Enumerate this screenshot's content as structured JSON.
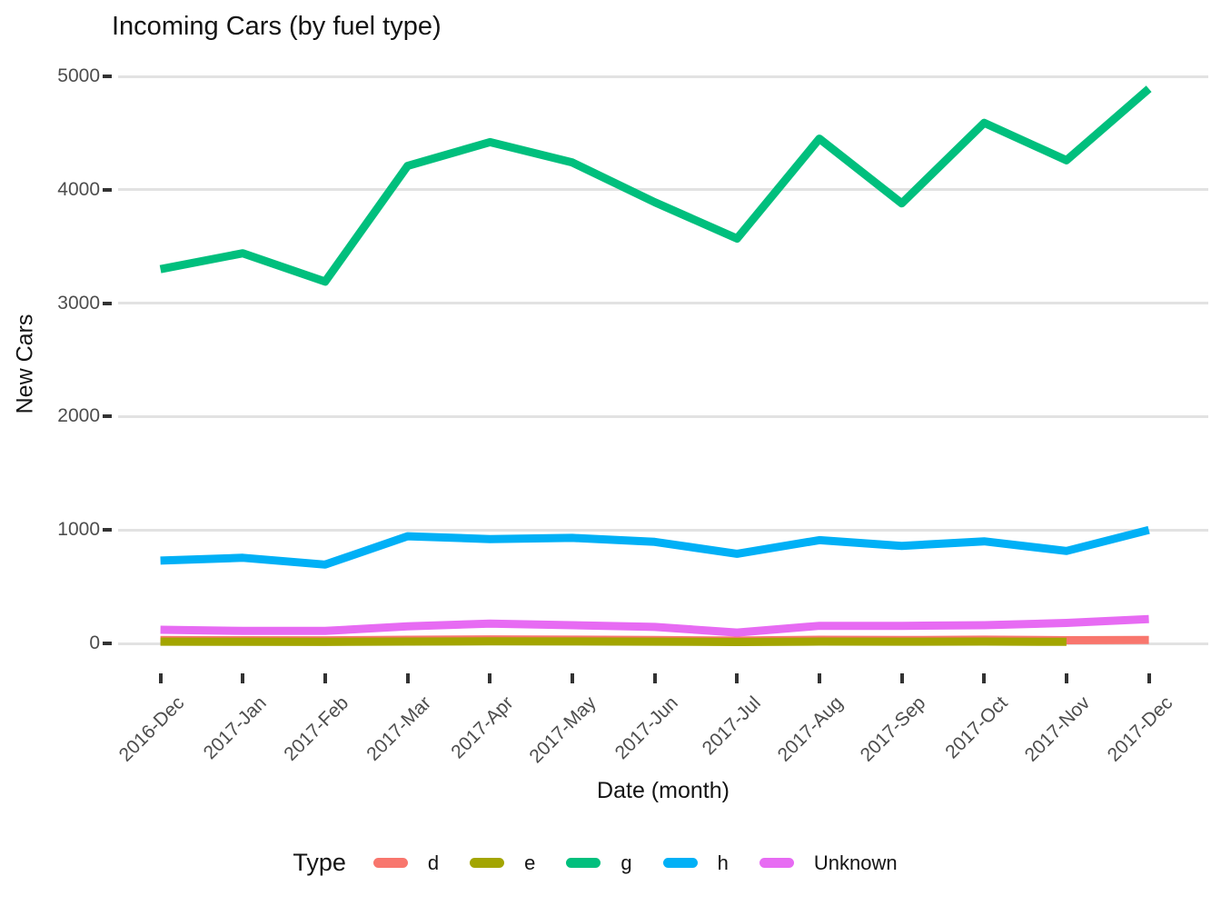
{
  "chart_data": {
    "type": "line",
    "title": "Incoming Cars (by fuel type)",
    "xlabel": "Date (month)",
    "ylabel": "New Cars",
    "categories": [
      "2016-Dec",
      "2017-Jan",
      "2017-Feb",
      "2017-Mar",
      "2017-Apr",
      "2017-May",
      "2017-Jun",
      "2017-Jul",
      "2017-Aug",
      "2017-Sep",
      "2017-Oct",
      "2017-Nov",
      "2017-Dec"
    ],
    "series": [
      {
        "name": "d",
        "color": "#F8766D",
        "values": [
          30,
          28,
          27,
          32,
          35,
          33,
          30,
          25,
          32,
          30,
          33,
          28,
          30
        ]
      },
      {
        "name": "e",
        "color": "#A3A500",
        "values": [
          15,
          14,
          13,
          16,
          18,
          17,
          15,
          12,
          16,
          15,
          16,
          14
        ]
      },
      {
        "name": "g",
        "color": "#00BF7D",
        "values": [
          3300,
          3440,
          3190,
          4210,
          4420,
          4240,
          3890,
          3570,
          4450,
          3880,
          4590,
          4260,
          4890
        ]
      },
      {
        "name": "h",
        "color": "#00B0F6",
        "values": [
          730,
          755,
          695,
          945,
          920,
          930,
          895,
          790,
          910,
          860,
          900,
          815,
          1000
        ]
      },
      {
        "name": "Unknown",
        "color": "#E76BF3",
        "values": [
          120,
          110,
          110,
          150,
          175,
          160,
          145,
          95,
          155,
          155,
          160,
          180,
          215
        ]
      }
    ],
    "ylim": [
      0,
      5000
    ],
    "yticks": [
      0,
      1000,
      2000,
      3000,
      4000,
      5000
    ],
    "grid": "horizontal-major-only",
    "legend_position": "bottom",
    "note_series_e_ends_at": "2017-Nov"
  },
  "legend": {
    "title": "Type"
  },
  "colors": {
    "background": "#ffffff",
    "gridline": "#e2e2e2",
    "tick": "#333333",
    "tick_label": "#4d4d4d",
    "text": "#141414"
  }
}
